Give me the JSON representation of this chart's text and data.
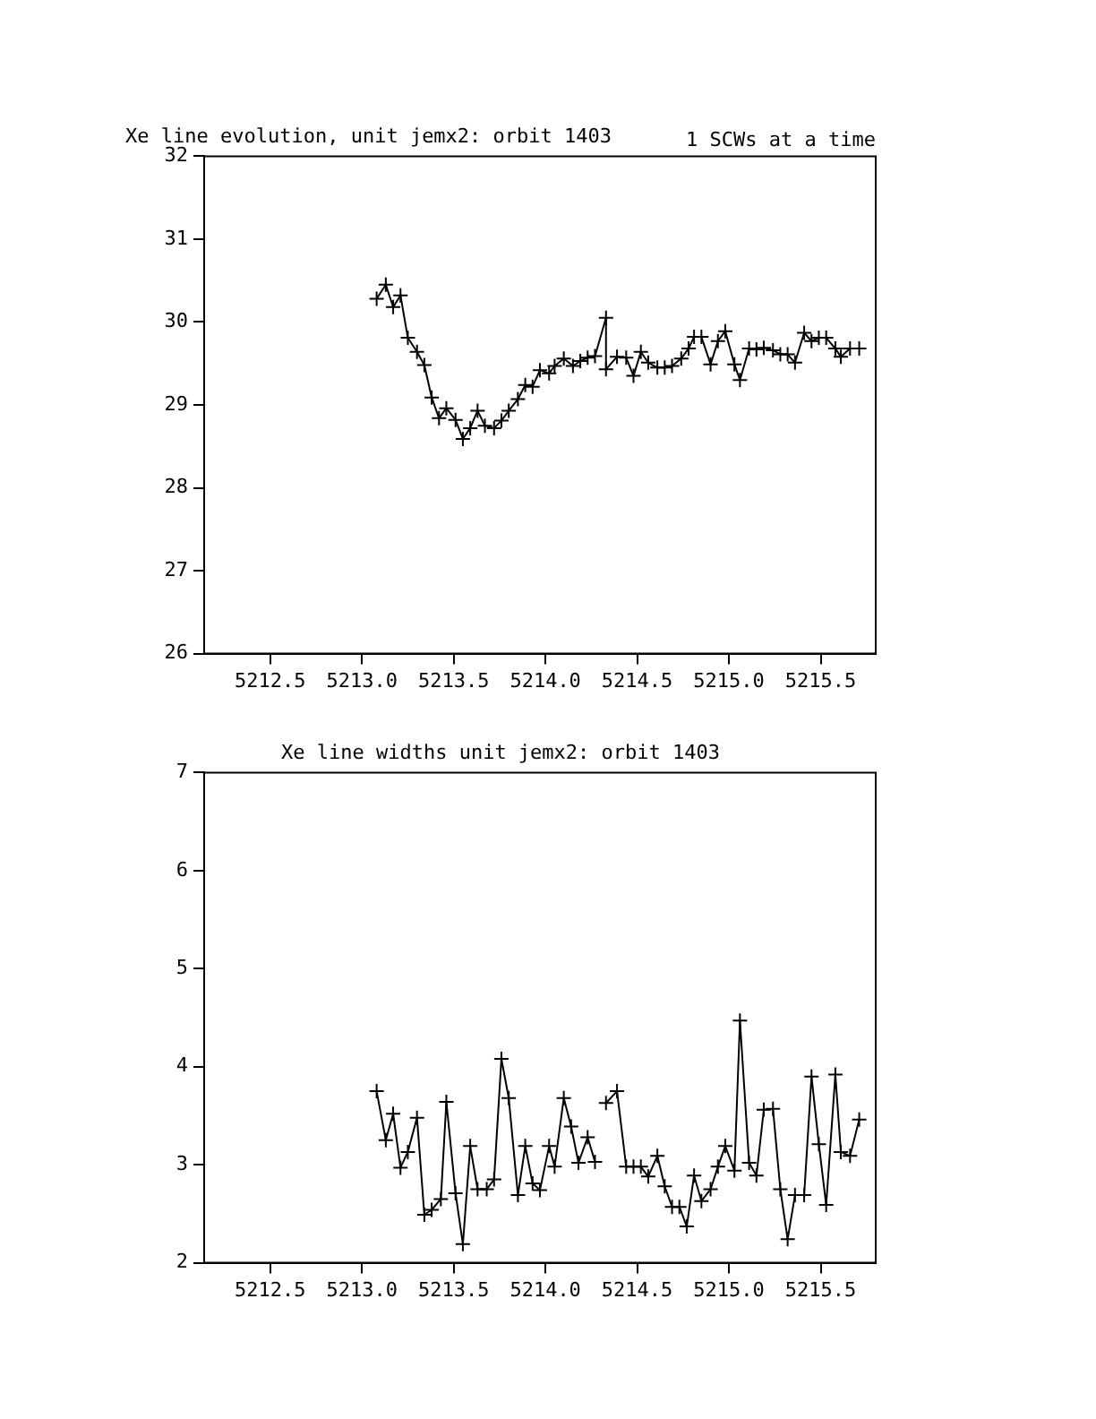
{
  "chart_data": [
    {
      "type": "line",
      "title": "Xe line evolution, unit jemx2: orbit 1403",
      "annotations": [
        "1 SCWs at a time"
      ],
      "x": [
        5213.08,
        5213.13,
        5213.17,
        5213.21,
        5213.25,
        5213.3,
        5213.34,
        5213.38,
        5213.42,
        5213.46,
        5213.51,
        5213.55,
        5213.59,
        5213.63,
        5213.67,
        5213.72,
        5213.76,
        5213.8,
        5213.85,
        5213.89,
        5213.93,
        5213.97,
        5214.02,
        5214.05,
        5214.1,
        5214.15,
        5214.19,
        5214.23,
        5214.27,
        5214.33,
        5214.33,
        5214.39,
        5214.44,
        5214.48,
        5214.52,
        5214.56,
        5214.61,
        5214.65,
        5214.69,
        5214.74,
        5214.78,
        5214.81,
        5214.85,
        5214.9,
        5214.94,
        5214.98,
        5215.03,
        5215.06,
        5215.11,
        5215.15,
        5215.19,
        5215.24,
        5215.28,
        5215.32,
        5215.36,
        5215.41,
        5215.45,
        5215.49,
        5215.53,
        5215.58,
        5215.61,
        5215.66,
        5215.71
      ],
      "series": [
        {
          "color": "#000000",
          "values": [
            30.28,
            30.45,
            30.18,
            30.32,
            29.81,
            29.64,
            29.48,
            29.09,
            28.84,
            28.96,
            28.82,
            28.59,
            28.72,
            28.93,
            28.75,
            28.72,
            28.81,
            28.93,
            29.07,
            29.24,
            29.22,
            29.42,
            29.38,
            29.47,
            29.56,
            29.47,
            29.53,
            29.57,
            29.59,
            30.05,
            29.43,
            29.58,
            29.57,
            29.35,
            29.64,
            29.51,
            29.45,
            29.45,
            29.47,
            29.56,
            29.68,
            29.82,
            29.82,
            29.49,
            29.77,
            29.89,
            29.49,
            29.3,
            29.68,
            29.67,
            29.69,
            29.66,
            29.61,
            29.61,
            29.51,
            29.87,
            29.77,
            29.81,
            29.81,
            29.68,
            29.58,
            29.68,
            29.68
          ]
        }
      ],
      "xlim": [
        5212.14,
        5215.8
      ],
      "xticks": [
        {
          "value": 5212.5,
          "label": "5212.5"
        },
        {
          "value": 5213,
          "label": "5213.0"
        },
        {
          "value": 5213.5,
          "label": "5213.5"
        },
        {
          "value": 5214,
          "label": "5214.0"
        },
        {
          "value": 5214.5,
          "label": "5214.5"
        },
        {
          "value": 5215,
          "label": "5215.0"
        },
        {
          "value": 5215.5,
          "label": "5215.5"
        }
      ],
      "ylim": [
        26,
        32
      ],
      "yticks": [
        26,
        27,
        28,
        29,
        30,
        31,
        32
      ],
      "marker": "cross",
      "line_style": "solid",
      "legend": false,
      "grid": false
    },
    {
      "type": "line",
      "title": "Xe line widths unit jemx2: orbit 1403",
      "series": [
        {
          "color": "#000000",
          "x": [
            5213.08,
            5213.13,
            5213.17,
            5213.21,
            5213.25,
            5213.3,
            5213.34,
            5213.38,
            5213.43,
            5213.46,
            5213.51,
            5213.55,
            5213.59,
            5213.63,
            5213.68,
            5213.72,
            5213.76,
            5213.8,
            5213.85,
            5213.89,
            5213.93,
            5213.97,
            5214.02,
            5214.05,
            5214.1,
            5214.14,
            5214.18,
            5214.23,
            5214.27
          ],
          "values": [
            3.75,
            3.25,
            3.52,
            2.97,
            3.13,
            3.48,
            2.49,
            2.54,
            2.65,
            3.64,
            2.71,
            2.19,
            3.19,
            2.75,
            2.75,
            2.85,
            4.08,
            3.68,
            2.69,
            3.19,
            2.81,
            2.74,
            3.19,
            2.98,
            3.68,
            3.39,
            3.02,
            3.28,
            3.03
          ]
        },
        {
          "color": "#000000",
          "x": [
            5214.33,
            5214.39,
            5214.44,
            5214.48,
            5214.52,
            5214.56,
            5214.61,
            5214.65,
            5214.69,
            5214.73,
            5214.77,
            5214.81,
            5214.85,
            5214.9,
            5214.94,
            5214.98,
            5215.03,
            5215.06,
            5215.11,
            5215.15,
            5215.19,
            5215.24,
            5215.28,
            5215.32,
            5215.36,
            5215.41,
            5215.45,
            5215.49,
            5215.53,
            5215.58,
            5215.61,
            5215.66,
            5215.71
          ],
          "values": [
            3.63,
            3.75,
            2.98,
            2.98,
            2.98,
            2.88,
            3.09,
            2.78,
            2.57,
            2.57,
            2.37,
            2.89,
            2.63,
            2.75,
            2.98,
            3.19,
            2.94,
            4.47,
            3.02,
            2.89,
            3.56,
            3.57,
            2.75,
            2.24,
            2.69,
            2.69,
            3.9,
            3.21,
            2.59,
            3.92,
            3.13,
            3.09,
            3.46
          ]
        }
      ],
      "xlim": [
        5212.14,
        5215.8
      ],
      "xticks": [
        {
          "value": 5212.5,
          "label": "5212.5"
        },
        {
          "value": 5213,
          "label": "5213.0"
        },
        {
          "value": 5213.5,
          "label": "5213.5"
        },
        {
          "value": 5214,
          "label": "5214.0"
        },
        {
          "value": 5214.5,
          "label": "5214.5"
        },
        {
          "value": 5215,
          "label": "5215.0"
        },
        {
          "value": 5215.5,
          "label": "5215.5"
        }
      ],
      "ylim": [
        2,
        7
      ],
      "yticks": [
        2,
        3,
        4,
        5,
        6,
        7
      ],
      "marker": "cross",
      "line_style": "solid",
      "legend": false,
      "grid": false
    }
  ]
}
